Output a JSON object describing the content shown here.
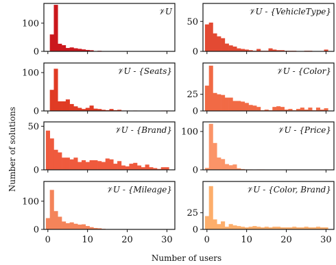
{
  "figure": {
    "xlabel": "Number of users",
    "ylabel": "Number of solutions"
  },
  "chart_data": [
    {
      "type": "bar",
      "title": "𝒱U",
      "xlim": [
        -1,
        32
      ],
      "ylim": [
        0,
        170
      ],
      "xticks": [],
      "yticks": [
        0,
        100
      ],
      "xticklabels": [],
      "yticklabels": [
        "0",
        "100"
      ],
      "bar_width": 1,
      "x": [
        1,
        2,
        3,
        4,
        5,
        6,
        7,
        8,
        9,
        10,
        11,
        12,
        13
      ],
      "values": [
        60,
        165,
        27,
        22,
        12,
        14,
        11,
        9,
        7,
        5,
        4,
        1,
        2
      ],
      "color": "#cb181d"
    },
    {
      "type": "bar",
      "title": "𝒱U - {VehicleType}",
      "xlim": [
        -1,
        32
      ],
      "ylim": [
        0,
        80
      ],
      "xticks": [],
      "yticks": [
        0,
        50
      ],
      "xticklabels": [],
      "yticklabels": [
        "0",
        "50"
      ],
      "bar_width": 1,
      "x": [
        0,
        1,
        2,
        3,
        4,
        5,
        6,
        7,
        8,
        9,
        10,
        11,
        12,
        13,
        14,
        15,
        16,
        17,
        18,
        19,
        20,
        21,
        22,
        23,
        24,
        25,
        26,
        27,
        28,
        29,
        30
      ],
      "values": [
        45,
        48,
        30,
        25,
        22,
        13,
        10,
        8,
        5,
        4,
        3,
        2,
        1,
        4,
        1,
        1,
        5,
        3,
        2,
        2,
        1,
        1,
        1,
        0,
        0,
        1,
        1,
        0,
        0,
        0,
        3
      ],
      "color": "#e34a33"
    },
    {
      "type": "bar",
      "title": "𝒱U - {Seats}",
      "xlim": [
        -1,
        32
      ],
      "ylim": [
        0,
        125
      ],
      "xticks": [],
      "yticks": [
        0,
        100
      ],
      "xticklabels": [],
      "yticklabels": [
        "0",
        "100"
      ],
      "bar_width": 1,
      "x": [
        1,
        2,
        3,
        4,
        5,
        6,
        7,
        8,
        9,
        10,
        11,
        12,
        13,
        14,
        15,
        16,
        17,
        18,
        19,
        20,
        21,
        22,
        23,
        24,
        25,
        26,
        27,
        28,
        29,
        30
      ],
      "values": [
        55,
        110,
        25,
        25,
        30,
        18,
        12,
        8,
        5,
        8,
        14,
        6,
        5,
        3,
        2,
        5,
        2,
        3,
        1,
        1,
        0,
        1,
        0,
        0,
        0,
        0,
        0,
        0,
        1,
        1
      ],
      "color": "#e03b24"
    },
    {
      "type": "bar",
      "title": "𝒱U - {Color}",
      "xlim": [
        -1,
        32
      ],
      "ylim": [
        0,
        72
      ],
      "xticks": [],
      "yticks": [
        0,
        25
      ],
      "xticklabels": [],
      "yticklabels": [
        "0",
        "25"
      ],
      "bar_width": 1,
      "x": [
        0,
        1,
        2,
        3,
        4,
        5,
        6,
        7,
        8,
        9,
        10,
        11,
        12,
        13,
        14,
        15,
        16,
        17,
        18,
        19,
        20,
        21,
        22,
        23,
        24,
        25,
        26,
        27,
        28,
        29,
        30
      ],
      "values": [
        38,
        68,
        27,
        25,
        24,
        20,
        20,
        15,
        15,
        14,
        12,
        9,
        8,
        6,
        1,
        2,
        1,
        6,
        7,
        6,
        2,
        3,
        1,
        3,
        5,
        2,
        5,
        1,
        5,
        2,
        4
      ],
      "color": "#f16a45"
    },
    {
      "type": "bar",
      "title": "𝒱U - {Brand}",
      "xlim": [
        -1,
        32
      ],
      "ylim": [
        0,
        55
      ],
      "xticks": [],
      "yticks": [
        0,
        50
      ],
      "xticklabels": [],
      "yticklabels": [
        "0",
        "50"
      ],
      "bar_width": 1,
      "x": [
        0,
        1,
        2,
        3,
        4,
        5,
        6,
        7,
        8,
        9,
        10,
        11,
        12,
        13,
        14,
        15,
        16,
        17,
        18,
        19,
        20,
        21,
        22,
        23,
        24,
        25,
        26,
        27,
        28,
        29,
        30
      ],
      "values": [
        45,
        36,
        23,
        20,
        14,
        14,
        12,
        14,
        9,
        11,
        9,
        11,
        11,
        10,
        9,
        13,
        12,
        7,
        10,
        5,
        4,
        7,
        8,
        5,
        3,
        6,
        3,
        2,
        1,
        3,
        3
      ],
      "color": "#ef5a3d"
    },
    {
      "type": "bar",
      "title": "𝒱U - {Price}",
      "xlim": [
        -1,
        32
      ],
      "ylim": [
        0,
        125
      ],
      "xticks": [],
      "yticks": [
        0,
        100
      ],
      "xticklabels": [],
      "yticklabels": [
        "0",
        "100"
      ],
      "bar_width": 1,
      "x": [
        0,
        1,
        2,
        3,
        4,
        5,
        6,
        7,
        8,
        9,
        10,
        11,
        12,
        13,
        14,
        15,
        16,
        17,
        18,
        19,
        20
      ],
      "values": [
        5,
        120,
        70,
        32,
        28,
        15,
        12,
        14,
        4,
        2,
        1,
        1,
        0,
        1,
        1,
        0,
        0,
        0,
        0,
        0,
        0
      ],
      "color": "#fb9468"
    },
    {
      "type": "bar",
      "title": "𝒱U - {Mileage}",
      "xlim": [
        -1,
        32
      ],
      "ylim": [
        0,
        170
      ],
      "xticks": [
        0,
        10,
        20,
        30
      ],
      "yticks": [
        0,
        100
      ],
      "xticklabels": [
        "0",
        "10",
        "20",
        "30"
      ],
      "yticklabels": [
        "0",
        "100"
      ],
      "bar_width": 1,
      "x": [
        0,
        1,
        2,
        3,
        4,
        5,
        6,
        7,
        8,
        9,
        10,
        11,
        12,
        13,
        14,
        15,
        16,
        17,
        18,
        19,
        20
      ],
      "values": [
        40,
        140,
        65,
        45,
        28,
        22,
        25,
        20,
        17,
        18,
        12,
        8,
        5,
        4,
        2,
        1,
        1,
        0,
        0,
        0,
        0
      ],
      "color": "#f4845a"
    },
    {
      "type": "bar",
      "title": "𝒱U - {Color, Brand}",
      "xlim": [
        -1,
        32
      ],
      "ylim": [
        0,
        72
      ],
      "xticks": [
        0,
        10,
        20,
        30
      ],
      "yticks": [
        0,
        25
      ],
      "xticklabels": [
        "0",
        "10",
        "20",
        "30"
      ],
      "yticklabels": [
        "0",
        "25"
      ],
      "bar_width": 1,
      "x": [
        0,
        1,
        2,
        3,
        4,
        5,
        6,
        7,
        8,
        9,
        10,
        11,
        12,
        13,
        14,
        15,
        16,
        17,
        18,
        19,
        20,
        21,
        22,
        23,
        24,
        25,
        26,
        27,
        28,
        29,
        30
      ],
      "values": [
        20,
        65,
        15,
        8,
        12,
        4,
        8,
        6,
        5,
        4,
        3,
        4,
        5,
        4,
        3,
        4,
        3,
        4,
        4,
        3,
        3,
        3,
        4,
        3,
        3,
        4,
        3,
        3,
        4,
        3,
        3
      ],
      "color": "#fdae6b"
    }
  ]
}
